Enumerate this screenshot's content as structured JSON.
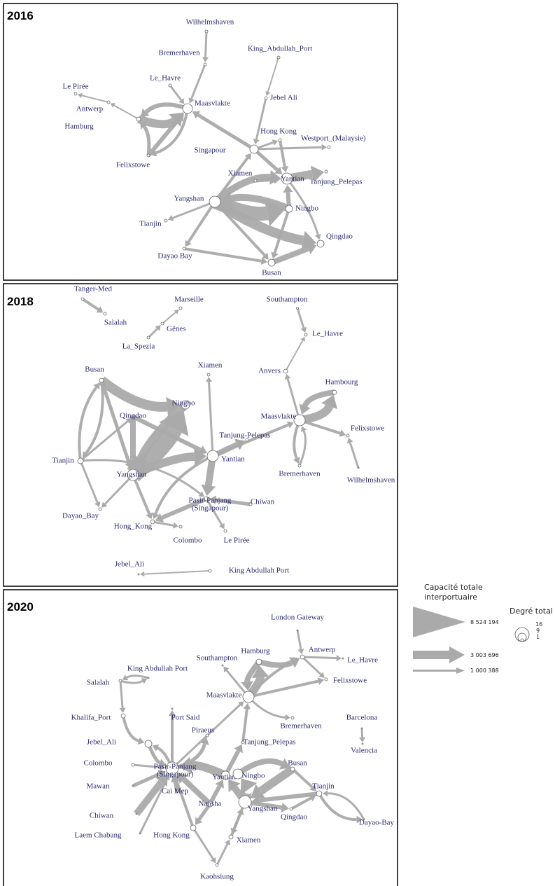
{
  "panels": [
    {
      "year": "2016",
      "nodes": [
        "Wilhelmshaven",
        "Bremerhaven",
        "King_Abdullah_Port",
        "Le_Havre",
        "Le Pirée",
        "Antwerp",
        "Maasvlakte",
        "Jebel Ali",
        "Hamburg",
        "Hong Kong",
        "Westport_(Malaysie)",
        "Singapour",
        "Felixstowe",
        "Xiamen",
        "Yantian",
        "Tanjung_Pelepas",
        "Yangshan",
        "Ningbo",
        "Tianjin",
        "Qingdao",
        "Dayao Bay",
        "Busan"
      ]
    },
    {
      "year": "2018",
      "nodes": [
        "Tanger-Med",
        "Salalah",
        "Marseille",
        "Gênes",
        "La_Spezia",
        "Southampton",
        "Le_Havre",
        "Anvers",
        "Hambourg",
        "Busan",
        "Xiamen",
        "Ningbo",
        "Qingdao",
        "Maasvlakte",
        "Felixstowe",
        "Tanjung-Pelepas",
        "Yantian",
        "Tianjin",
        "Yangshan",
        "Bremerhaven",
        "Wilhelmshaven",
        [
          "Pasir-Panjang",
          "(Singapour)"
        ],
        "Chiwan",
        "Dayao_Bay",
        "Hong_Kong",
        "Colombo",
        "Le Pirée",
        "Jebel_Ali",
        "King Abdullah Port"
      ]
    },
    {
      "year": "2020",
      "nodes": [
        "London Gateway",
        "Antwerp",
        "Le_Havre",
        "Hamburg",
        "Southampton",
        "King Abdullah Port",
        "Felixstowe",
        "Salalah",
        "Maasvlakte",
        "Khalifa_Port",
        "Port Said",
        "Bremerhaven",
        "Barcelona",
        "Piraeus",
        "Jebel_Ali",
        "Tanjung_Pelepas",
        "Valencia",
        "Colombo",
        [
          "Pasir-Panjang",
          "(Singapour)"
        ],
        "Busan",
        "Yantian",
        "Ningbo",
        "Mawan",
        "Tianjin",
        "Cai Mep",
        "Chiwan",
        "Nansha",
        "Yangshan",
        "Dayao-Bay",
        "Qingdao",
        "Laem Chabang",
        "Hong Kong",
        "Xiamen",
        "Kaohsiung"
      ]
    }
  ],
  "legend": {
    "capacity_title": [
      "Capacité totale",
      "interportuaire"
    ],
    "capacity_values": [
      "8 524 194",
      "3 003 696",
      "1 000 388"
    ],
    "degree_title": "Degré total",
    "degree_values": [
      "16",
      "9",
      "1"
    ]
  }
}
